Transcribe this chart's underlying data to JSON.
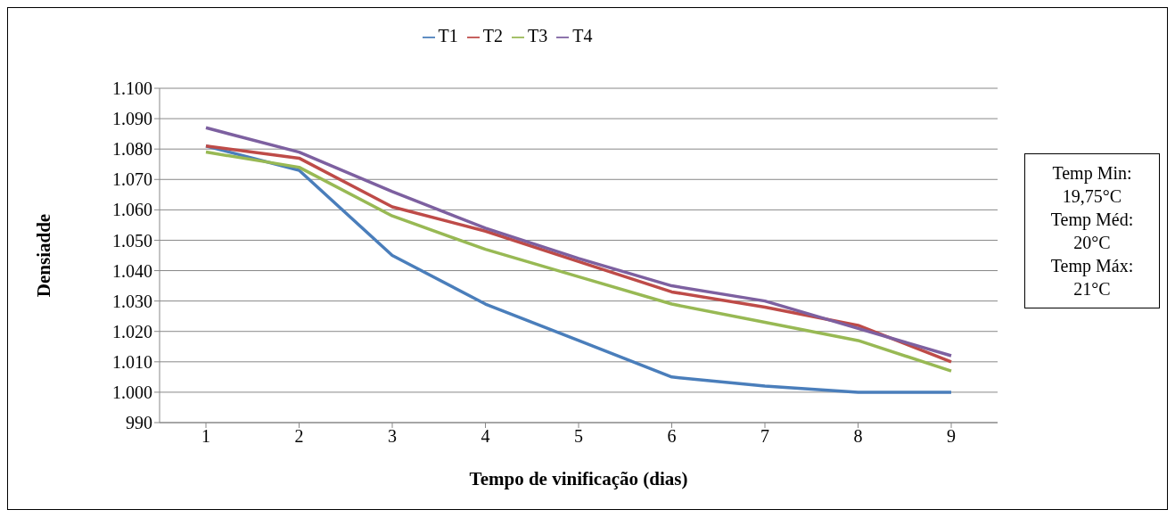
{
  "chart_data": {
    "type": "line",
    "xlabel": "Tempo de vinificação (dias)",
    "ylabel": "Densiadde",
    "categories": [
      "1",
      "2",
      "3",
      "4",
      "5",
      "6",
      "7",
      "8",
      "9"
    ],
    "series": [
      {
        "name": "T1",
        "color": "#4a7ebb",
        "values": [
          1081,
          1073,
          1045,
          1029,
          1017,
          1005,
          1002,
          1000,
          1000
        ]
      },
      {
        "name": "T2",
        "color": "#be4b48",
        "values": [
          1081,
          1077,
          1061,
          1053,
          1043,
          1033,
          1028,
          1022,
          1010
        ]
      },
      {
        "name": "T3",
        "color": "#98b954",
        "values": [
          1079,
          1074,
          1058,
          1047,
          1038,
          1029,
          1023,
          1017,
          1007
        ]
      },
      {
        "name": "T4",
        "color": "#7d60a0",
        "values": [
          1087,
          1079,
          1066,
          1054,
          1044,
          1035,
          1030,
          1021,
          1012
        ]
      }
    ],
    "ylim": [
      990,
      1100
    ],
    "yticks": [
      990,
      {
        "value": 1000,
        "label": "1.000"
      },
      {
        "value": 1010,
        "label": "1.010"
      },
      {
        "value": 1020,
        "label": "1.020"
      },
      {
        "value": 1030,
        "label": "1.030"
      },
      {
        "value": 1040,
        "label": "1.040"
      },
      {
        "value": 1050,
        "label": "1.050"
      },
      {
        "value": 1060,
        "label": "1.060"
      },
      {
        "value": 1070,
        "label": "1.070"
      },
      {
        "value": 1080,
        "label": "1.080"
      },
      {
        "value": 1090,
        "label": "1.090"
      },
      {
        "value": 1100,
        "label": "1.100"
      }
    ],
    "grid": "y",
    "legend": "top",
    "marker": "none",
    "line_style": "solid",
    "annotations": [
      "Temp Min: 19,75°C",
      "Temp Méd: 20°C",
      "Temp Máx: 21°C"
    ]
  }
}
